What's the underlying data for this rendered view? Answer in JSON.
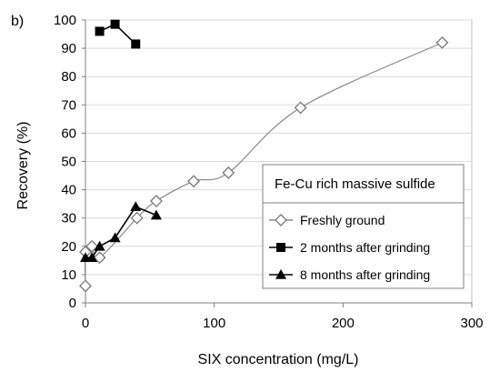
{
  "chart_data": {
    "type": "line",
    "panel_label": "b)",
    "xlabel": "SIX concentration (mg/L)",
    "ylabel": "Recovery  (%)",
    "xlim": [
      0,
      300
    ],
    "ylim": [
      0,
      100
    ],
    "x_ticks": [
      "0",
      "100",
      "200",
      "300"
    ],
    "y_ticks": [
      "0",
      "10",
      "20",
      "30",
      "40",
      "50",
      "60",
      "70",
      "80",
      "90",
      "100"
    ],
    "grid": "horizontal",
    "legend": {
      "placement": "right",
      "title": "Fe-Cu rich massive sulfide"
    },
    "series": [
      {
        "name": "Freshly ground",
        "marker": "open-diamond",
        "color": "#888888",
        "x": [
          0,
          0,
          5,
          11,
          40,
          55,
          84,
          111,
          167,
          277
        ],
        "y": [
          6,
          18,
          20,
          16,
          30,
          36,
          43,
          46,
          69,
          92
        ]
      },
      {
        "name": "2 months after grinding",
        "marker": "filled-square",
        "color": "#000000",
        "x": [
          11,
          23,
          39
        ],
        "y": [
          96,
          98.5,
          91.5
        ]
      },
      {
        "name": "8 months after grinding",
        "marker": "filled-triangle",
        "color": "#000000",
        "x": [
          0,
          5,
          11,
          23,
          39,
          55
        ],
        "y": [
          16,
          16,
          20,
          23,
          34,
          31
        ]
      }
    ]
  }
}
